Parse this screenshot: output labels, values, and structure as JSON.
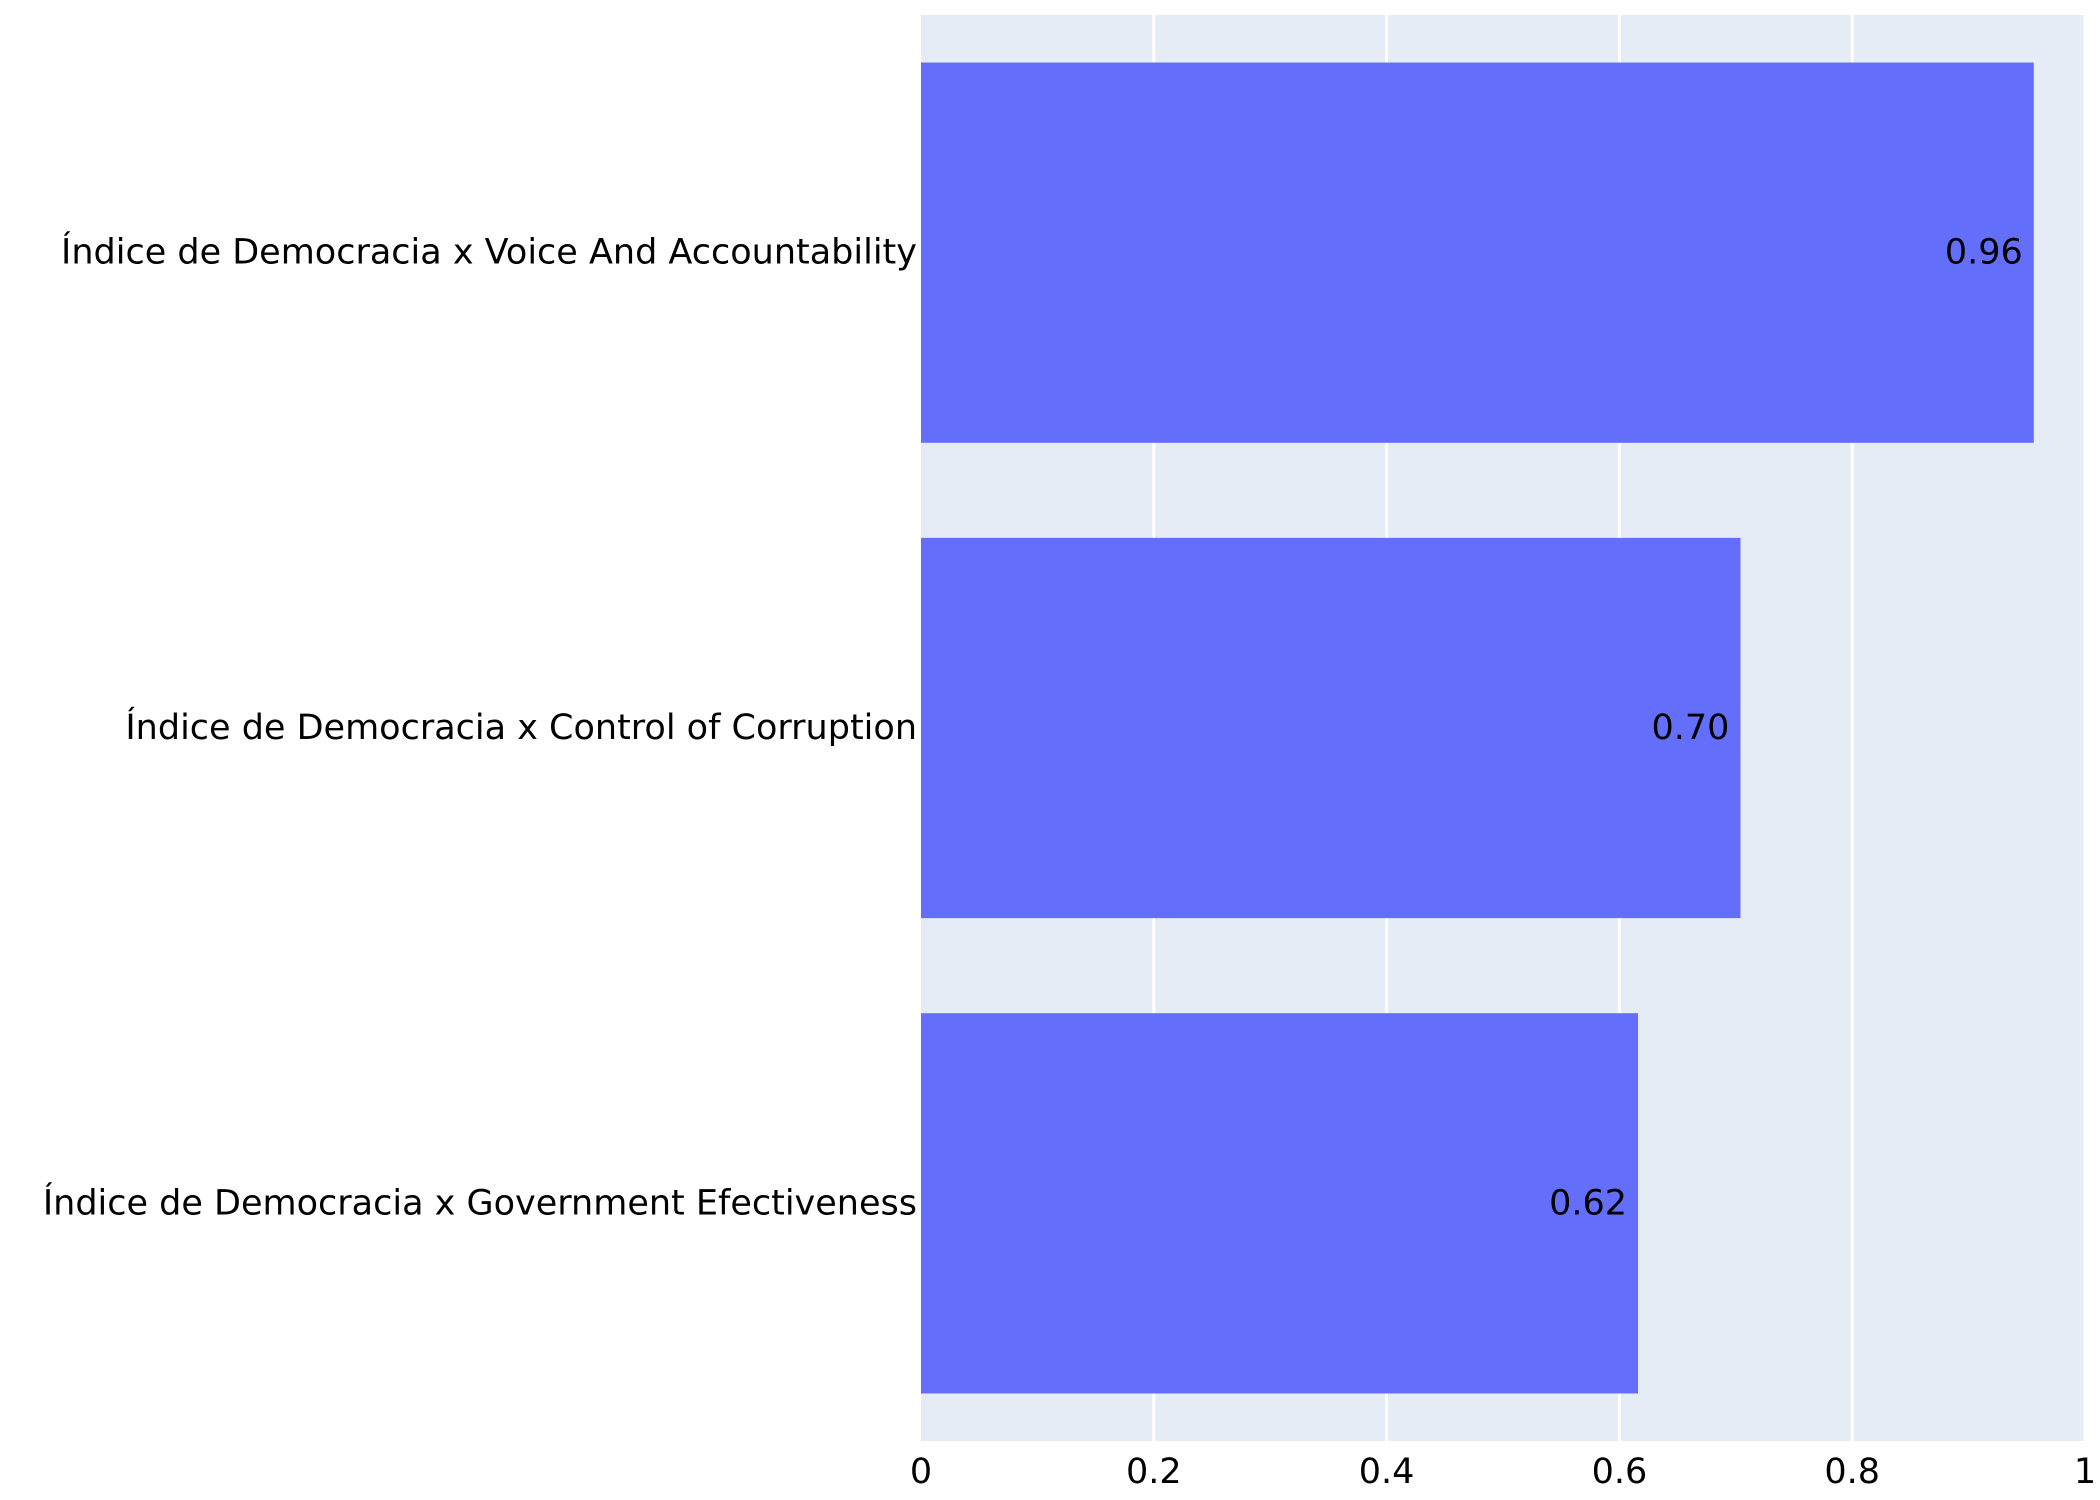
{
  "chart_data": {
    "type": "bar",
    "orientation": "horizontal",
    "title": "",
    "xlabel": "",
    "ylabel": "",
    "categories": [
      "Índice de Democracia x Voice And Accountability",
      "Índice de Democracia x Control of Corruption",
      "Índice de Democracia x Government Efectiveness"
    ],
    "values": [
      0.956,
      0.704,
      0.616
    ],
    "value_labels": [
      "0.96",
      "0.70",
      "0.62"
    ],
    "xlim": [
      0,
      1
    ],
    "xticks": [
      0,
      0.2,
      0.4,
      0.6,
      0.8,
      1
    ],
    "xtick_labels": [
      "0",
      "0.2",
      "0.4",
      "0.6",
      "0.8",
      "1"
    ],
    "grid": true,
    "colors": {
      "bar": "#636efa",
      "plot_background": "#e5ecf6",
      "gridline": "#ffffff",
      "text": "#000000"
    }
  }
}
